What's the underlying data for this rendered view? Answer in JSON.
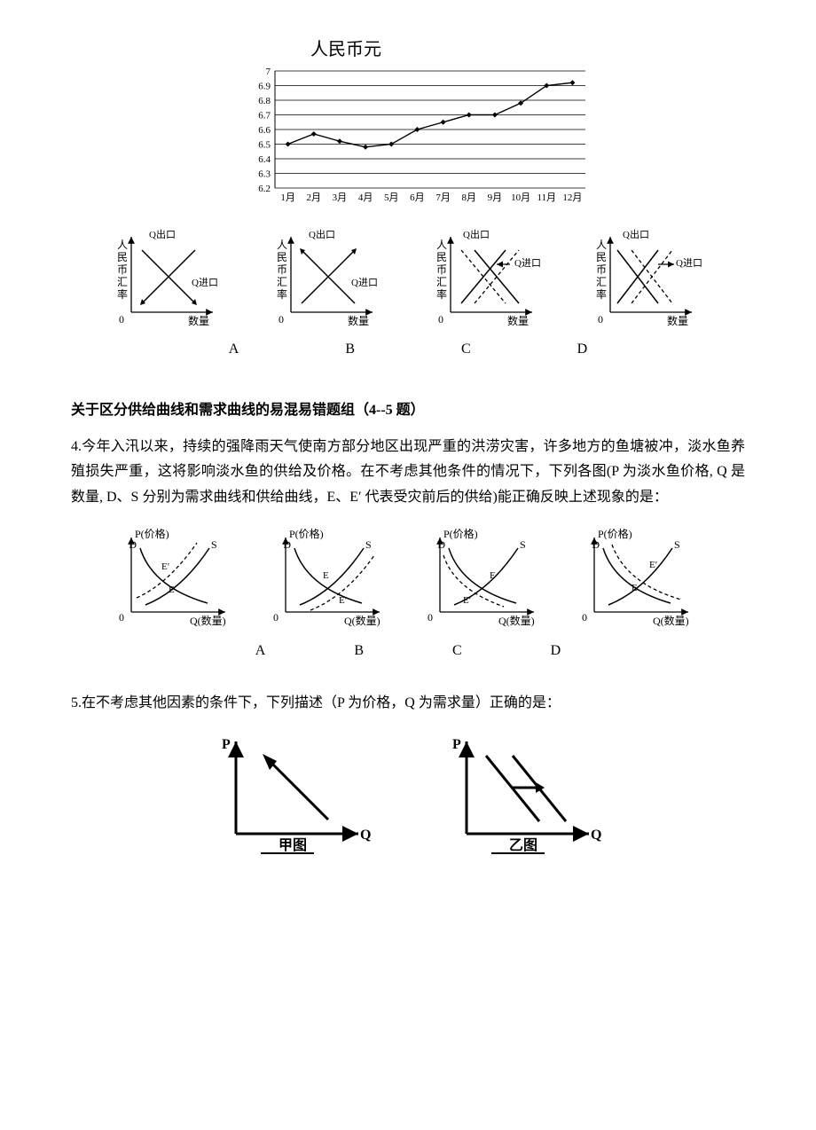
{
  "lineChart": {
    "title": "人民币元",
    "yTicks": [
      "7",
      "6.9",
      "6.8",
      "6.7",
      "6.6",
      "6.5",
      "6.4",
      "6.3",
      "6.2"
    ],
    "xTicks": [
      "1月",
      "2月",
      "3月",
      "4月",
      "5月",
      "6月",
      "7月",
      "8月",
      "9月",
      "10月",
      "11月",
      "12月"
    ],
    "values": [
      6.5,
      6.57,
      6.52,
      6.48,
      6.5,
      6.6,
      6.65,
      6.7,
      6.7,
      6.78,
      6.9,
      6.92
    ],
    "yMin": 6.2,
    "yMax": 7.0,
    "titleFontSize": 20,
    "tickFontSize": 11,
    "lineColor": "#000000",
    "markerColor": "#000000",
    "gridColor": "#000000",
    "bgColor": "#ffffff"
  },
  "miniCharts1": {
    "yLabel": "人民币汇率",
    "xLabel": "数量",
    "legendExport": "Q出口",
    "legendImport": "Q进口",
    "labels": [
      "A",
      "B",
      "C",
      "D"
    ]
  },
  "section1": {
    "heading": "关于区分供给曲线和需求曲线的易混易错题组（4--5 题）",
    "q4": "4.今年入汛以来，持续的强降雨天气使南方部分地区出现严重的洪涝灾害，许多地方的鱼塘被冲，淡水鱼养殖损失严重，这将影响淡水鱼的供给及价格。在不考虑其他条件的情况下，下列各图(P 为淡水鱼价格, Q 是数量, D、S 分别为需求曲线和供给曲线，E、E′ 代表受灾前后的供给)能正确反映上述现象的是："
  },
  "miniCharts2": {
    "yLabel": "P(价格)",
    "xLabel": "Q(数量)",
    "dLabel": "D",
    "sLabel": "S",
    "eLabel": "E",
    "ePrimeLabel": "E′",
    "labels": [
      "A",
      "B",
      "C",
      "D"
    ]
  },
  "section2": {
    "q5": "5.在不考虑其他因素的条件下，下列描述（P 为价格，Q 为需求量）正确的是："
  },
  "miniCharts3": {
    "yLabel": "P",
    "xLabel": "Q",
    "caption1": "甲图",
    "caption2": "乙图"
  }
}
